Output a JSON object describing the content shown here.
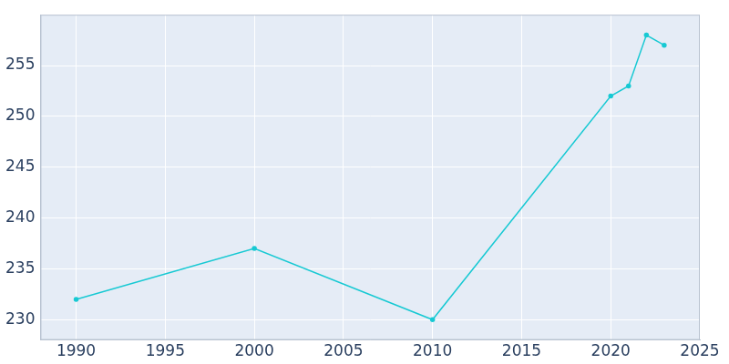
{
  "chart_data": {
    "type": "line",
    "x": [
      1990,
      2000,
      2010,
      2020,
      2021,
      2022,
      2023
    ],
    "values": [
      232,
      237,
      230,
      252,
      253,
      258,
      257
    ],
    "color": "#17c9d3",
    "marker": "circle",
    "xlim": [
      1988,
      2025
    ],
    "xticks": [
      1990,
      1995,
      2000,
      2005,
      2010,
      2015,
      2020,
      2025
    ],
    "ylim": [
      228,
      260
    ],
    "yticks": [
      230,
      235,
      240,
      245,
      250,
      255
    ],
    "grid": true
  }
}
